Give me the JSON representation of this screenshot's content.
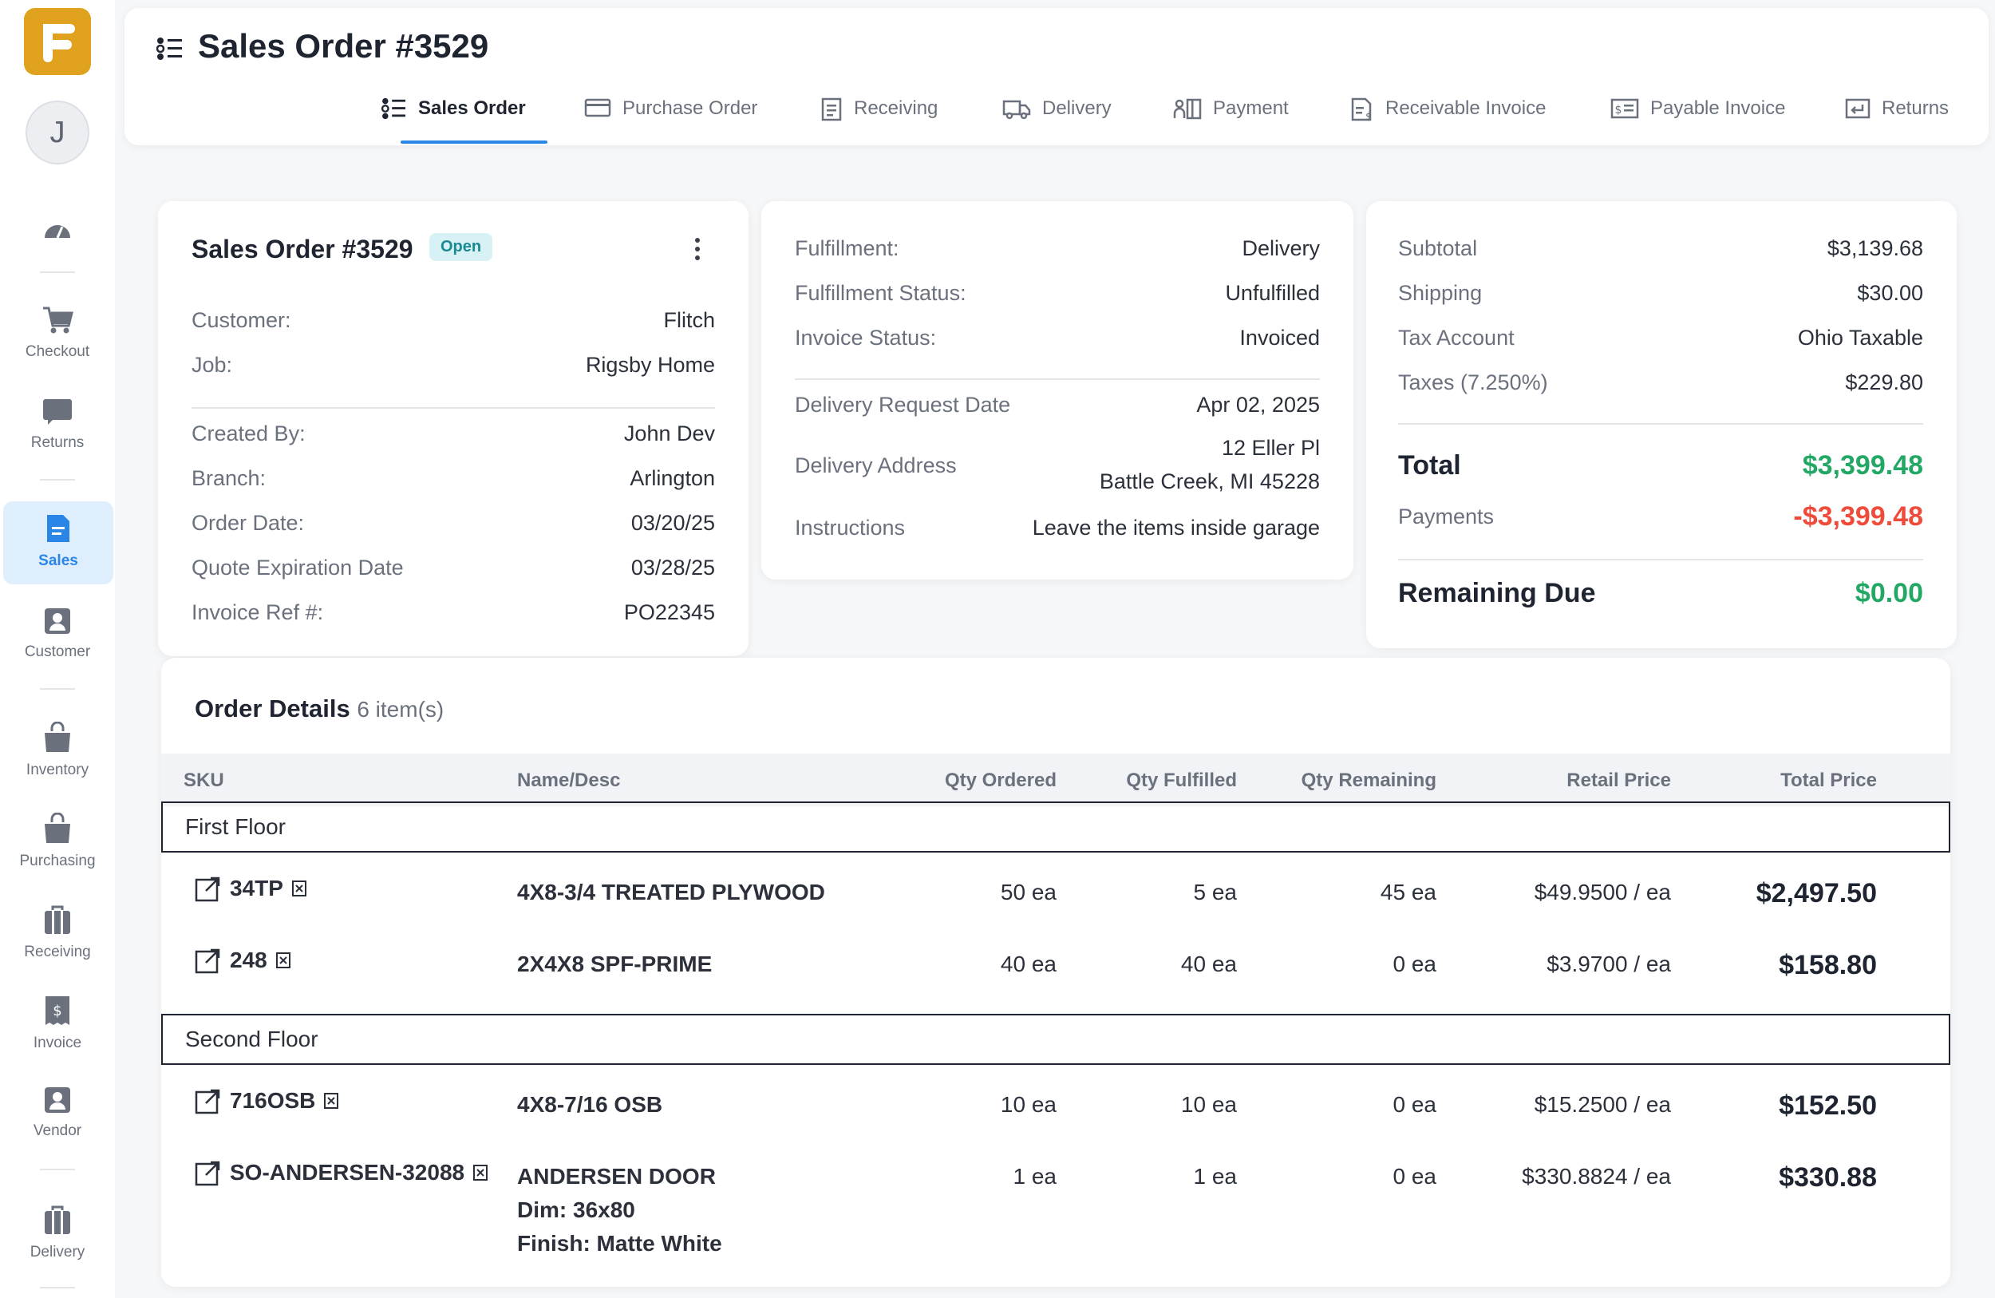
{
  "sidebar": {
    "avatar_initial": "J",
    "items": [
      {
        "label": "",
        "icon": "dashboard-icon"
      },
      {
        "label": "Checkout",
        "icon": "cart-icon"
      },
      {
        "label": "Returns",
        "icon": "returns-icon"
      },
      {
        "label": "Sales",
        "icon": "document-icon",
        "active": true
      },
      {
        "label": "Customer",
        "icon": "user-icon"
      },
      {
        "label": "Inventory",
        "icon": "bag-icon"
      },
      {
        "label": "Purchasing",
        "icon": "bag-icon"
      },
      {
        "label": "Receiving",
        "icon": "briefcase-icon"
      },
      {
        "label": "Invoice",
        "icon": "invoice-icon"
      },
      {
        "label": "Vendor",
        "icon": "user-icon"
      },
      {
        "label": "Delivery",
        "icon": "briefcase-icon"
      }
    ]
  },
  "header": {
    "title": "Sales Order #3529",
    "tabs": [
      {
        "label": "Sales Order",
        "active": true
      },
      {
        "label": "Purchase Order"
      },
      {
        "label": "Receiving"
      },
      {
        "label": "Delivery"
      },
      {
        "label": "Payment"
      },
      {
        "label": "Receivable Invoice"
      },
      {
        "label": "Payable Invoice"
      },
      {
        "label": "Returns"
      }
    ]
  },
  "summary": {
    "title": "Sales Order #3529",
    "status": "Open",
    "customer_label": "Customer:",
    "customer": "Flitch",
    "job_label": "Job:",
    "job": "Rigsby Home",
    "created_by_label": "Created By:",
    "created_by": "John Dev",
    "branch_label": "Branch:",
    "branch": "Arlington",
    "order_date_label": "Order Date:",
    "order_date": "03/20/25",
    "quote_exp_label": "Quote Expiration Date",
    "quote_exp": "03/28/25",
    "invoice_ref_label": "Invoice Ref #:",
    "invoice_ref": "PO22345"
  },
  "fulfillment": {
    "fulfillment_label": "Fulfillment:",
    "fulfillment": "Delivery",
    "status_label": "Fulfillment Status:",
    "status": "Unfulfilled",
    "invoice_status_label": "Invoice Status:",
    "invoice_status": "Invoiced",
    "delivery_date_label": "Delivery Request Date",
    "delivery_date": "Apr 02, 2025",
    "address_label": "Delivery Address",
    "address_line1": "12 Eller Pl",
    "address_line2": "Battle Creek, MI 45228",
    "instructions_label": "Instructions",
    "instructions": "Leave the items inside garage"
  },
  "totals": {
    "subtotal_label": "Subtotal",
    "subtotal": "$3,139.68",
    "shipping_label": "Shipping",
    "shipping": "$30.00",
    "tax_account_label": "Tax Account",
    "tax_account": "Ohio Taxable",
    "taxes_label": "Taxes (7.250%)",
    "taxes": "$229.80",
    "total_label": "Total",
    "total": "$3,399.48",
    "payments_label": "Payments",
    "payments": "-$3,399.48",
    "remaining_label": "Remaining Due",
    "remaining": "$0.00"
  },
  "orders": {
    "title": "Order Details",
    "count": "6 item(s)",
    "columns": [
      "SKU",
      "Name/Desc",
      "Qty Ordered",
      "Qty Fulfilled",
      "Qty Remaining",
      "Retail Price",
      "Total Price"
    ],
    "groups": [
      {
        "name": "First Floor",
        "rows": [
          {
            "sku": "34TP",
            "name": "4X8-3/4 TREATED PLYWOOD",
            "ordered": "50 ea",
            "fulfilled": "5 ea",
            "remaining": "45 ea",
            "price": "$49.9500 / ea",
            "total": "$2,497.50"
          },
          {
            "sku": "248",
            "name": "2X4X8 SPF-PRIME",
            "ordered": "40 ea",
            "fulfilled": "40 ea",
            "remaining": "0 ea",
            "price": "$3.9700 / ea",
            "total": "$158.80"
          }
        ]
      },
      {
        "name": "Second Floor",
        "rows": [
          {
            "sku": "716OSB",
            "name": "4X8-7/16 OSB",
            "ordered": "10 ea",
            "fulfilled": "10 ea",
            "remaining": "0 ea",
            "price": "$15.2500 / ea",
            "total": "$152.50"
          },
          {
            "sku": "SO-ANDERSEN-32088",
            "name": "ANDERSEN DOOR",
            "dim": "Dim: 36x80",
            "finish": "Finish: Matte White",
            "ordered": "1 ea",
            "fulfilled": "1 ea",
            "remaining": "0 ea",
            "price": "$330.8824 / ea",
            "total": "$330.88"
          }
        ]
      }
    ]
  }
}
